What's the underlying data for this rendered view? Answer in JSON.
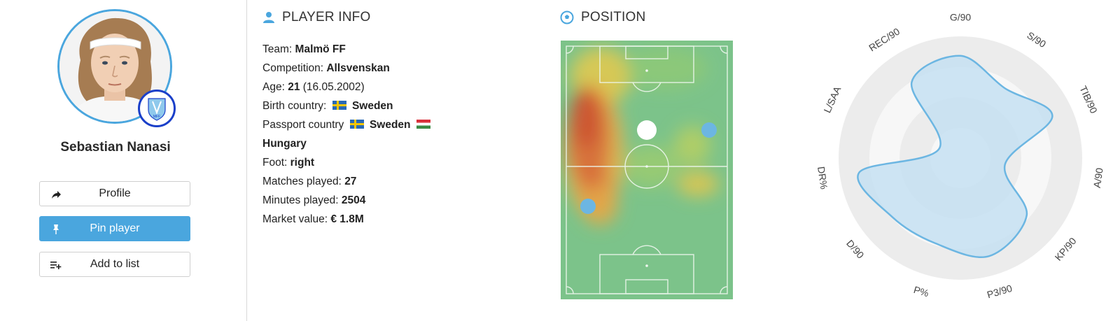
{
  "player": {
    "name": "Sebastian Nanasi",
    "club_badge_text": "Malmö FF"
  },
  "actions": {
    "profile": "Profile",
    "pin": "Pin player",
    "add_to_list": "Add to list"
  },
  "player_info": {
    "title": "PLAYER INFO",
    "team_label": "Team:",
    "team": "Malmö FF",
    "competition_label": "Competition:",
    "competition": "Allsvenskan",
    "age_label": "Age:",
    "age": "21",
    "birth_date": "(16.05.2002)",
    "birth_country_label": "Birth country:",
    "birth_country": "Sweden",
    "passport_label": "Passport country",
    "passport_1": "Sweden",
    "passport_2": "Hungary",
    "foot_label": "Foot:",
    "foot": "right",
    "matches_label": "Matches played:",
    "matches": "27",
    "minutes_label": "Minutes played:",
    "minutes": "2504",
    "market_label": "Market value:",
    "market": "€ 1.8M"
  },
  "position": {
    "title": "POSITION"
  },
  "radar": {
    "labels": [
      "G/90",
      "S/90",
      "TIB/90",
      "A/90",
      "KP/90",
      "P3/90",
      "P%",
      "D/90",
      "DR%",
      "L/SAA",
      "REC/90"
    ],
    "values": [
      0.84,
      0.68,
      0.83,
      0.37,
      0.72,
      0.84,
      0.73,
      0.74,
      0.84,
      0.19,
      0.74
    ],
    "fill_color": "#c6e0f2",
    "stroke_color": "#6cb6e2"
  },
  "colors": {
    "accent": "#4aa6de",
    "badge_ring": "#1a3fc9"
  }
}
